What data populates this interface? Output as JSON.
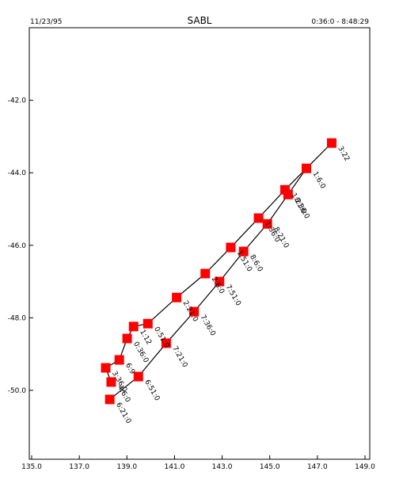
{
  "chart_data": {
    "type": "track",
    "title": "SABL",
    "date": "11/23/95",
    "time_range": "0:36:0 - 8:48:29",
    "color": "#ff0000",
    "x": [
      138.28,
      139.48,
      140.65,
      141.82,
      142.89,
      143.9,
      144.9,
      145.77,
      146.54,
      147.6,
      145.64,
      144.53,
      143.36,
      142.29,
      141.09,
      139.88,
      139.28,
      139.01,
      138.68,
      138.11,
      138.34
    ],
    "y": [
      -50.25,
      -49.62,
      -48.7,
      -47.83,
      -47.0,
      -46.17,
      -45.41,
      -44.6,
      -43.88,
      -43.18,
      -44.47,
      -45.25,
      -46.06,
      -46.78,
      -47.44,
      -48.16,
      -48.24,
      -48.57,
      -49.16,
      -49.38,
      -49.77
    ],
    "point_labels": [
      "6:21:0",
      "6:51:0",
      "7:21:0",
      "7:36:0",
      "7:51:0",
      "8:6:0",
      "8:21:0",
      "8:36:0",
      "1:6:0",
      "3:22",
      "1:21:0",
      "1:36:0",
      "1:51:0",
      "2:6:0",
      "2:21:0",
      "0:51:0",
      "1:12",
      "0:36:0",
      "6:9",
      "3:36:0",
      "4:6:0"
    ],
    "xlim": [
      134.9,
      149.2
    ],
    "ylim": [
      -51.9,
      -40.0
    ],
    "xticks": [
      {
        "value": 135,
        "label": "135.0"
      },
      {
        "value": 137,
        "label": "137.0"
      },
      {
        "value": 139,
        "label": "139.0"
      },
      {
        "value": 141,
        "label": "141.0"
      },
      {
        "value": 143,
        "label": "143.0"
      },
      {
        "value": 145,
        "label": "145.0"
      },
      {
        "value": 147,
        "label": "147.0"
      },
      {
        "value": 149,
        "label": "149.0"
      }
    ],
    "yticks": [
      {
        "value": -42,
        "label": "-42.0"
      },
      {
        "value": -44,
        "label": "-44.0"
      },
      {
        "value": -46,
        "label": "-46.0"
      },
      {
        "value": -48,
        "label": "-48.0"
      },
      {
        "value": -50,
        "label": "-50.0"
      }
    ]
  }
}
